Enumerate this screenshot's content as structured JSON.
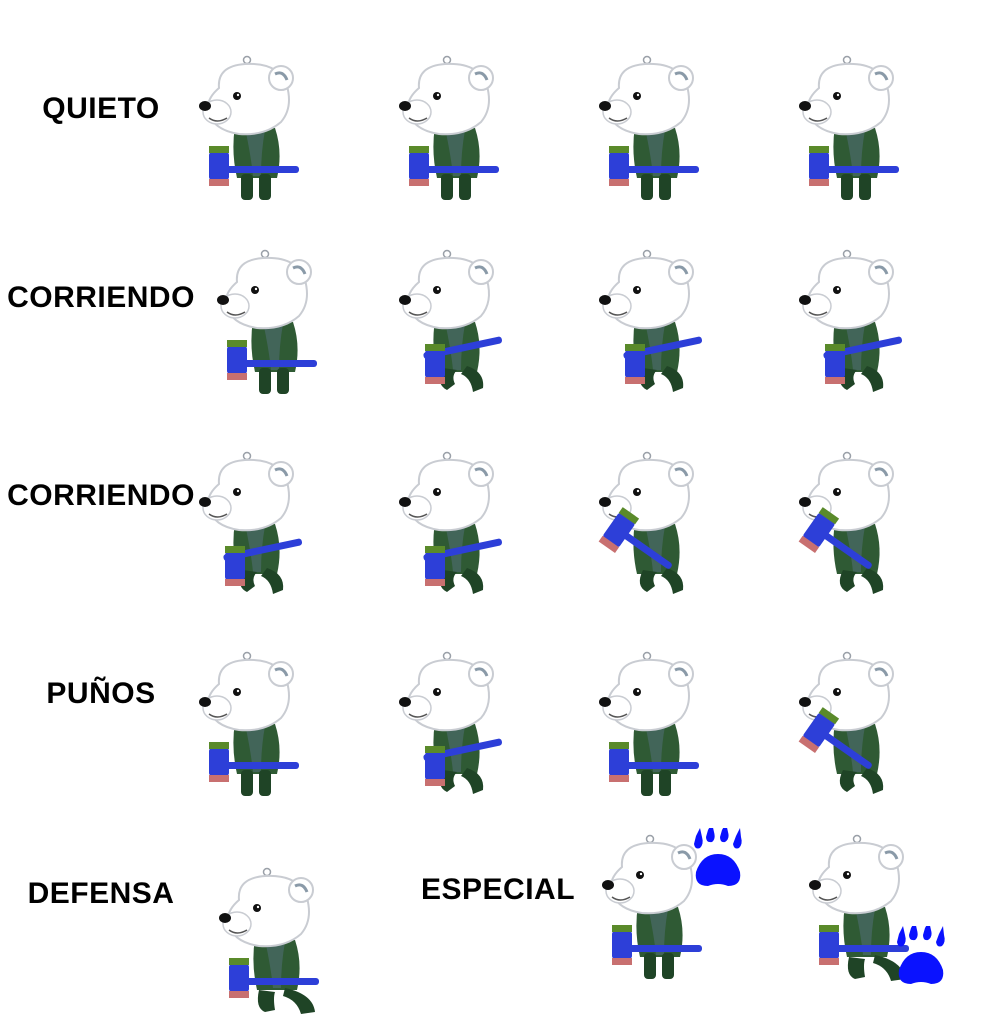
{
  "sheet": {
    "rows": [
      {
        "label": "QUIETO",
        "poses": [
          "stand",
          "stand",
          "stand",
          "stand"
        ]
      },
      {
        "label": "CORRIENDO",
        "poses": [
          "stand",
          "run",
          "run",
          "run"
        ]
      },
      {
        "label": "CORRIENDO",
        "poses": [
          "run",
          "run",
          "swing",
          "swing"
        ]
      },
      {
        "label": "PUÑOS",
        "poses": [
          "stand",
          "run",
          "stand",
          "swing"
        ]
      },
      {
        "label": "DEFENSA",
        "poses": [
          "crouch"
        ]
      }
    ],
    "special": {
      "label": "ESPECIAL",
      "poses": [
        "stand",
        "crouch"
      ]
    }
  },
  "icons": {
    "paw": "paw-icon",
    "bear": "polar-bear-sprite"
  },
  "colors": {
    "fur": "#ffffff",
    "outline": "#c9ccd2",
    "hammer_blue": "#2d3fd8",
    "hammer_green": "#5a8a2a",
    "hammer_pink": "#c87070",
    "body_green": "#2f5a34",
    "paw_blue": "#0a12ff"
  }
}
